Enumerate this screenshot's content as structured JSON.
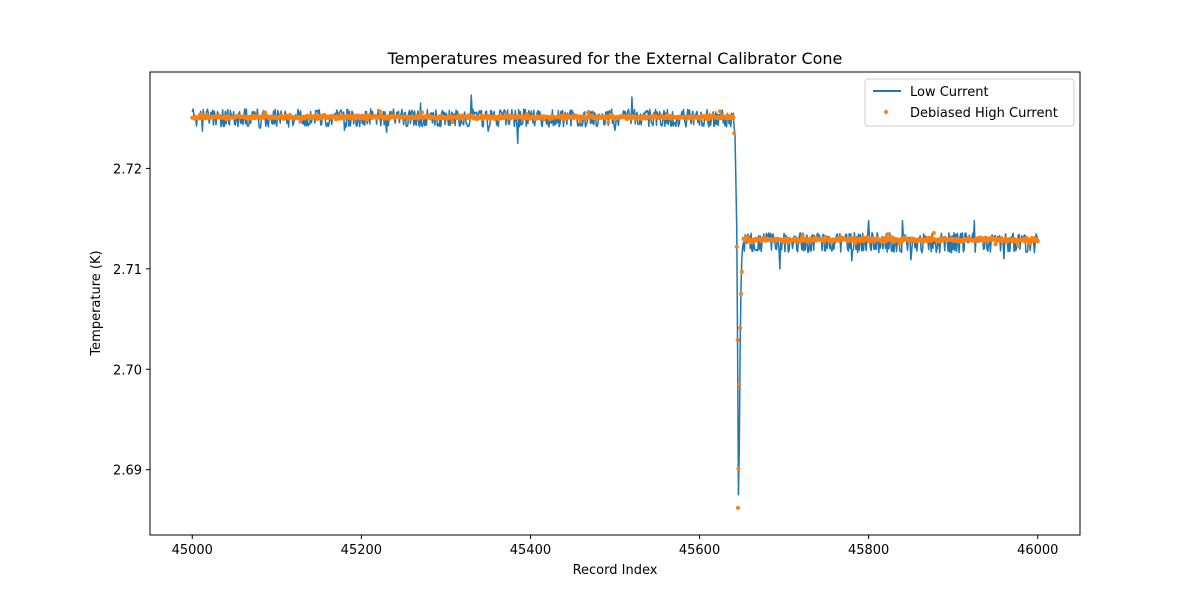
{
  "chart_data": {
    "type": "line",
    "title": "Temperatures measured for the External Calibrator Cone",
    "xlabel": "Record Index",
    "ylabel": "Temperature (K)",
    "xlim": [
      44950,
      46050
    ],
    "ylim": [
      2.6835,
      2.7296
    ],
    "xticks": [
      45000,
      45200,
      45400,
      45600,
      45800,
      46000
    ],
    "xtick_labels": [
      "45000",
      "45200",
      "45400",
      "45600",
      "45800",
      "46000"
    ],
    "yticks": [
      2.69,
      2.7,
      2.71,
      2.72
    ],
    "ytick_labels": [
      "2.69",
      "2.70",
      "2.71",
      "2.72"
    ],
    "legend_position": "top-right",
    "series": [
      {
        "name": "Low Current",
        "style": "line",
        "color": "#1f77b4",
        "segments": [
          {
            "x_start": 45000,
            "x_end": 45640,
            "level": 2.7252,
            "noise": 0.0009,
            "downspikes": [
              [
                45012,
                2.7237
              ],
              [
                45080,
                2.724
              ],
              [
                45180,
                2.7238
              ],
              [
                45230,
                2.7236
              ],
              [
                45350,
                2.7237
              ],
              [
                45385,
                2.7225
              ],
              [
                45500,
                2.7238
              ]
            ],
            "upspikes": [
              [
                45330,
                2.7273
              ],
              [
                45520,
                2.7271
              ],
              [
                45270,
                2.7265
              ]
            ]
          },
          {
            "x_start": 45652,
            "x_end": 46000,
            "level": 2.7128,
            "noise": 0.001,
            "downspikes": [
              [
                45695,
                2.71
              ],
              [
                45780,
                2.7108
              ],
              [
                45850,
                2.7109
              ],
              [
                45960,
                2.711
              ]
            ],
            "upspikes": [
              [
                45800,
                2.7148
              ],
              [
                45840,
                2.7148
              ],
              [
                45925,
                2.7148
              ]
            ]
          }
        ],
        "transition": [
          [
            45640,
            2.725
          ],
          [
            45642,
            2.7232
          ],
          [
            45644,
            2.714
          ],
          [
            45645,
            2.702
          ],
          [
            45646,
            2.6875
          ],
          [
            45647,
            2.692
          ],
          [
            45648,
            2.702
          ],
          [
            45649,
            2.708
          ],
          [
            45650,
            2.711
          ],
          [
            45651,
            2.7122
          ],
          [
            45652,
            2.7126
          ]
        ]
      },
      {
        "name": "Debiased High Current",
        "style": "scatter",
        "color": "#ff7f0e",
        "segments": [
          {
            "x_start": 45000,
            "x_end": 45640,
            "level": 2.7251,
            "noise": 0.00025
          },
          {
            "x_start": 45652,
            "x_end": 46000,
            "level": 2.7129,
            "noise": 0.0003
          }
        ],
        "transition_points": [
          [
            45641,
            2.7235
          ],
          [
            45644,
            2.7122
          ],
          [
            45645,
            2.7029
          ],
          [
            45645.5,
            2.6862
          ],
          [
            45646,
            2.6901
          ],
          [
            45647,
            2.6985
          ],
          [
            45648,
            2.7041
          ],
          [
            45649,
            2.7075
          ],
          [
            45650,
            2.7097
          ]
        ]
      }
    ]
  }
}
